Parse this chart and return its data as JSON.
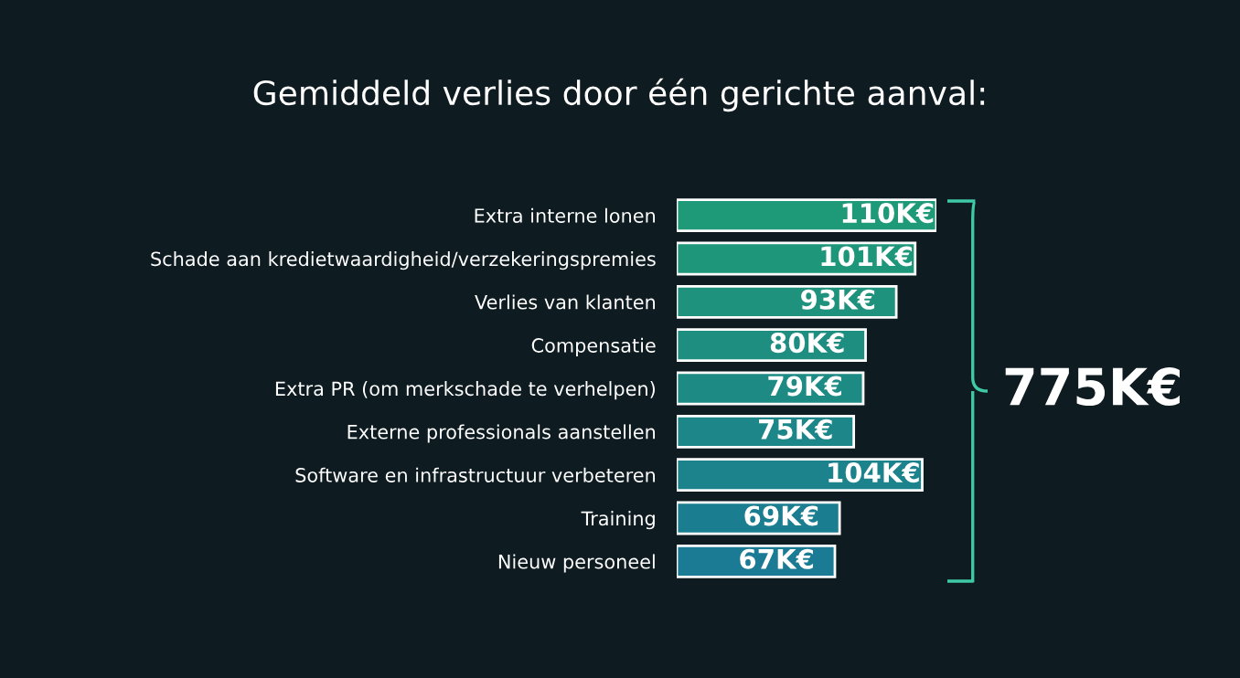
{
  "chart_data": {
    "type": "bar",
    "orientation": "horizontal",
    "title": "Gemiddeld verlies door één gerichte aanval:",
    "categories": [
      "Extra interne lonen",
      "Schade aan kredietwaardigheid/verzekeringspremies",
      "Verlies van klanten",
      "Compensatie",
      "Extra PR (om merkschade te verhelpen)",
      "Externe professionals aanstellen",
      "Software en infrastructuur verbeteren",
      "Training",
      "Nieuw personeel"
    ],
    "values": [
      110,
      101,
      93,
      80,
      79,
      75,
      104,
      69,
      67
    ],
    "value_labels": [
      "110K€",
      "101K€",
      "93K€",
      "80K€",
      "79K€",
      "75K€",
      "104K€",
      "69K€",
      "67K€"
    ],
    "colors": [
      "#1f9a78",
      "#1e967a",
      "#1e927d",
      "#1d8e80",
      "#1d8a84",
      "#1c8688",
      "#1c828c",
      "#1b7e90",
      "#1b7a94"
    ],
    "annotations": [
      "775K€"
    ]
  }
}
